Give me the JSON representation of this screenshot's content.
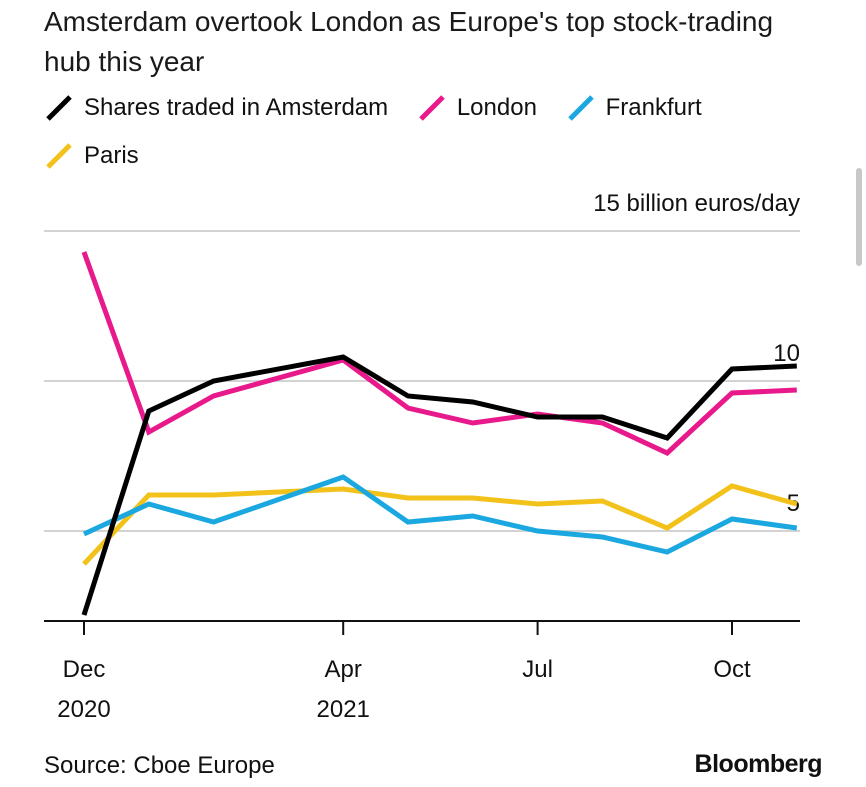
{
  "title": "Amsterdam overtook London as Europe's top stock-trading hub this year",
  "legend": [
    {
      "label": "Shares traded in Amsterdam",
      "color": "#000000"
    },
    {
      "label": "London",
      "color": "#e8198b"
    },
    {
      "label": "Frankfurt",
      "color": "#1ba8e0"
    },
    {
      "label": "Paris",
      "color": "#f2c21b"
    }
  ],
  "source": "Source: Cboe Europe",
  "brand": "Bloomberg",
  "chart_data": {
    "type": "line",
    "title": "Amsterdam overtook London as Europe's top stock-trading hub this year",
    "xlabel": "",
    "ylabel": "billion euros/day",
    "ylim": [
      2,
      15
    ],
    "yticks": [
      {
        "value": 5,
        "label": "5"
      },
      {
        "value": 10,
        "label": "10"
      },
      {
        "value": 15,
        "label": "15 billion euros/day"
      }
    ],
    "xticks": [
      {
        "index": 0,
        "label": "Dec",
        "sublabel": "2020"
      },
      {
        "index": 4,
        "label": "Apr",
        "sublabel": "2021"
      },
      {
        "index": 7,
        "label": "Jul",
        "sublabel": ""
      },
      {
        "index": 10,
        "label": "Oct",
        "sublabel": ""
      }
    ],
    "x": [
      "2020-12",
      "2021-01",
      "2021-02",
      "2021-03",
      "2021-04",
      "2021-05",
      "2021-06",
      "2021-07",
      "2021-08",
      "2021-09",
      "2021-10",
      "2021-11"
    ],
    "series": [
      {
        "name": "Paris",
        "color": "#f2c21b",
        "values": [
          3.9,
          6.2,
          6.2,
          null,
          6.4,
          6.1,
          6.1,
          5.9,
          6.0,
          5.1,
          6.5,
          5.9
        ]
      },
      {
        "name": "Frankfurt",
        "color": "#1ba8e0",
        "values": [
          4.9,
          5.9,
          5.3,
          null,
          6.8,
          5.3,
          5.5,
          5.0,
          4.8,
          4.3,
          5.4,
          5.1
        ]
      },
      {
        "name": "London",
        "color": "#e8198b",
        "values": [
          14.3,
          8.3,
          9.5,
          null,
          10.7,
          9.1,
          8.6,
          8.9,
          8.6,
          7.6,
          9.6,
          9.7
        ]
      },
      {
        "name": "Shares traded in Amsterdam",
        "color": "#000000",
        "values": [
          2.2,
          9.0,
          10.0,
          null,
          10.8,
          9.5,
          9.3,
          8.8,
          8.8,
          8.1,
          10.4,
          10.5
        ]
      }
    ]
  }
}
